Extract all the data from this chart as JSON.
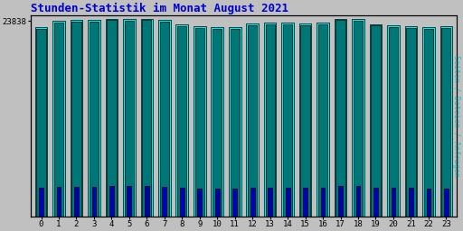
{
  "title": "Stunden-Statistik im Monat August 2021",
  "ylabel": "Seiten / Dateien / Anfragen",
  "ytick_label": "23838",
  "background_color": "#c0c0c0",
  "plot_bg_color": "#c0c0c0",
  "title_color": "#0000cc",
  "ylabel_color": "#00cccc",
  "tick_color": "#000000",
  "bar_cyan": "#00eeee",
  "bar_teal": "#007777",
  "bar_blue": "#0000bb",
  "bar_edgecolor": "#000000",
  "hours": [
    0,
    1,
    2,
    3,
    4,
    5,
    6,
    7,
    8,
    9,
    10,
    11,
    12,
    13,
    14,
    15,
    16,
    17,
    18,
    19,
    20,
    21,
    22,
    23
  ],
  "seiten": [
    23100,
    23800,
    23900,
    23950,
    24100,
    24050,
    24100,
    23900,
    23400,
    23200,
    23100,
    23100,
    23500,
    23600,
    23600,
    23500,
    23600,
    24100,
    24050,
    23450,
    23300,
    23200,
    23100,
    23200
  ],
  "dateien": [
    22900,
    23600,
    23700,
    23750,
    23900,
    23850,
    23900,
    23700,
    23200,
    23000,
    22900,
    22900,
    23300,
    23400,
    23400,
    23300,
    23400,
    23900,
    23850,
    23250,
    23100,
    23000,
    22900,
    23000
  ],
  "anfragen": [
    3500,
    3600,
    3600,
    3650,
    3700,
    3700,
    3700,
    3650,
    3500,
    3400,
    3400,
    3400,
    3500,
    3500,
    3500,
    3500,
    3500,
    3700,
    3700,
    3500,
    3500,
    3500,
    3400,
    3400
  ],
  "ymax": 24500,
  "ymin": 0,
  "ytick_val": 23838,
  "bar_width": 0.7
}
